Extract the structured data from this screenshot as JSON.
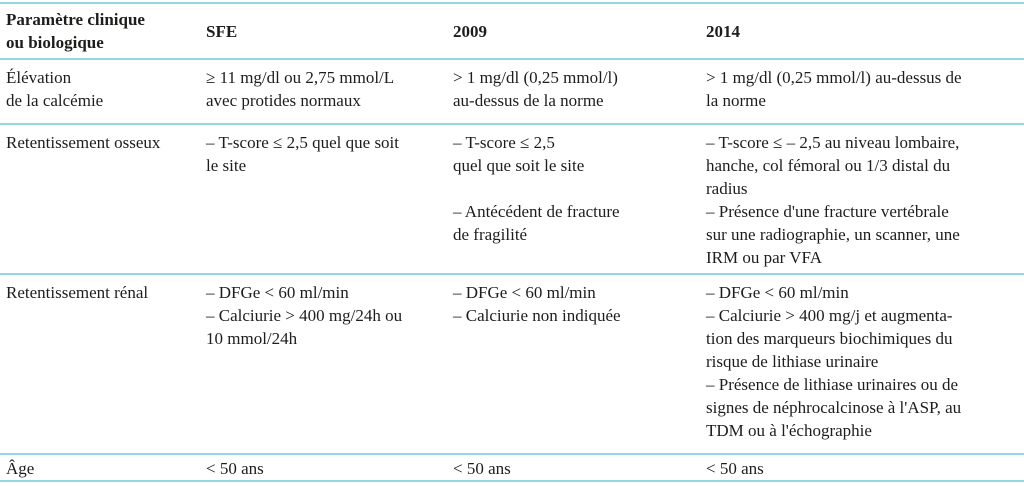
{
  "table": {
    "border_color": "#95d5e4",
    "header": [
      "Paramètre clinique\nou biologique",
      "SFE",
      "2009",
      "2014"
    ],
    "rows": [
      {
        "cells": [
          "Élévation\nde la calcémie",
          "≥ 11 mg/dl ou 2,75 mmol/L\navec protides normaux",
          "> 1 mg/dl (0,25 mmol/l)\nau-dessus de la norme",
          "> 1 mg/dl (0,25 mmol/l) au-dessus de\nla norme"
        ]
      },
      {
        "cells": [
          "Retentissement osseux",
          "– T-score ≤ 2,5 quel que soit\nle site",
          "– T-score ≤ 2,5\nquel que soit le site\n\n– Antécédent de fracture\nde fragilité",
          "– T-score ≤ – 2,5 au niveau lombaire,\nhanche, col fémoral ou 1/3 distal du\nradius\n– Présence d'une fracture vertébrale\nsur une radiographie, un scanner, une\nIRM ou par VFA"
        ]
      },
      {
        "cells": [
          "Retentissement rénal",
          "– DFGe < 60 ml/min\n– Calciurie > 400 mg/24h ou\n10 mmol/24h",
          "– DFGe < 60 ml/min\n– Calciurie non indiquée",
          "– DFGe < 60 ml/min\n– Calciurie > 400 mg/j et augmenta-\ntion des marqueurs biochimiques du\nrisque de lithiase urinaire\n– Présence de lithiase urinaires ou de\nsignes de néphrocalcinose à l'ASP, au\nTDM ou à l'échographie"
        ]
      },
      {
        "cells": [
          "Âge",
          "< 50 ans",
          "< 50 ans",
          "< 50 ans"
        ]
      }
    ]
  }
}
